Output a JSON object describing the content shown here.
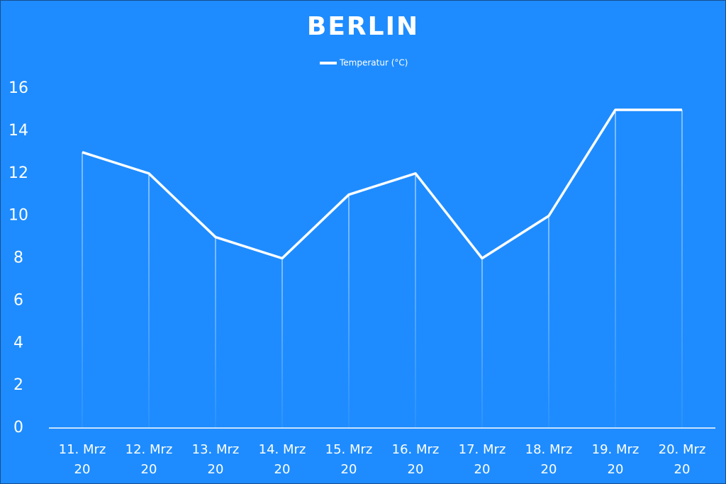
{
  "chart_data": {
    "type": "line",
    "title": "BERLIN",
    "categories": [
      "11. Mrz 20",
      "12. Mrz 20",
      "13. Mrz 20",
      "14. Mrz 20",
      "15. Mrz 20",
      "16. Mrz 20",
      "17. Mrz 20",
      "18. Mrz 20",
      "19. Mrz 20",
      "20. Mrz 20"
    ],
    "series": [
      {
        "name": "Temperatur (°C)",
        "color": "#ffffff",
        "values": [
          13,
          12,
          9,
          8,
          11,
          12,
          8,
          10,
          15,
          15
        ]
      }
    ],
    "ylim": [
      0,
      16
    ],
    "yticks": [
      0,
      2,
      4,
      6,
      8,
      10,
      12,
      14,
      16
    ],
    "grid": false,
    "drop_lines": true,
    "legend": "top"
  }
}
